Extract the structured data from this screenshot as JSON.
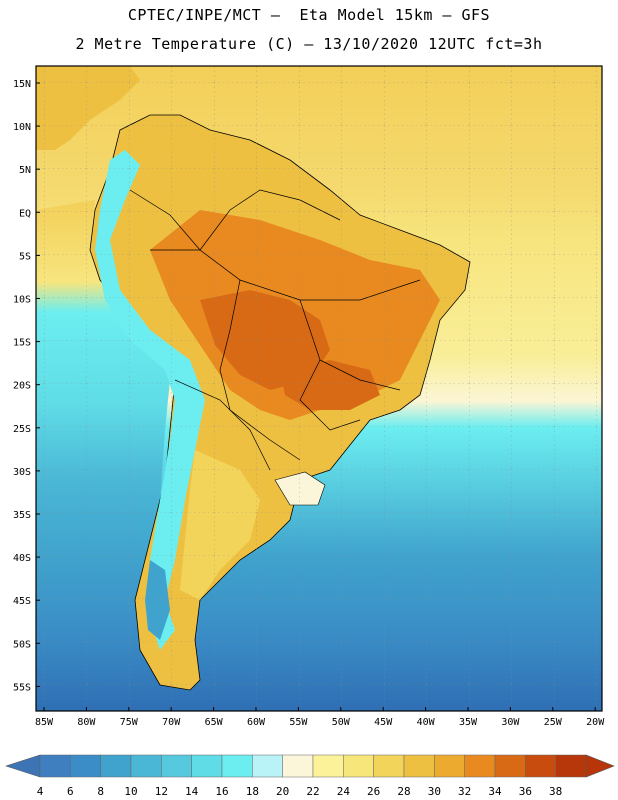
{
  "header": {
    "title_line1": "CPTEC/INPE/MCT –  Eta Model 15km – GFS",
    "title_line2": "2 Metre Temperature (C) – 13/10/2020 12UTC fct=3h"
  },
  "axes": {
    "lat_labels": [
      "15N",
      "10N",
      "5N",
      "EQ",
      "5S",
      "10S",
      "15S",
      "20S",
      "25S",
      "30S",
      "35S",
      "40S",
      "45S",
      "50S",
      "55S"
    ],
    "lon_labels": [
      "85W",
      "80W",
      "75W",
      "70W",
      "65W",
      "60W",
      "55W",
      "50W",
      "45W",
      "40W",
      "35W",
      "30W",
      "25W",
      "20W"
    ]
  },
  "colorbar": {
    "labels": [
      "4",
      "6",
      "8",
      "10",
      "12",
      "14",
      "16",
      "18",
      "20",
      "22",
      "24",
      "26",
      "28",
      "30",
      "32",
      "34",
      "36",
      "38"
    ],
    "colors": [
      "#3f7fbf",
      "#3a8dc6",
      "#40a3cd",
      "#4bb7d6",
      "#56c9de",
      "#5fdce6",
      "#6ceef0",
      "#b9f3f7",
      "#fbf6d9",
      "#fbf29a",
      "#f7e67a",
      "#f3d45a",
      "#eec042",
      "#ecab2e",
      "#e88a20",
      "#d96a15",
      "#c84c0e",
      "#b7360a"
    ],
    "under_color": "#3d74b5",
    "over_color": "#b8350a"
  },
  "legend_colors": {
    "ocean_deep": "#2f6fb4",
    "ocean_mid": "#3aa0d0",
    "ocean_cyan": "#5fdce6",
    "land_warm": "#eec042",
    "land_hot": "#d96a15",
    "andes_cold": "#6ceef0"
  }
}
